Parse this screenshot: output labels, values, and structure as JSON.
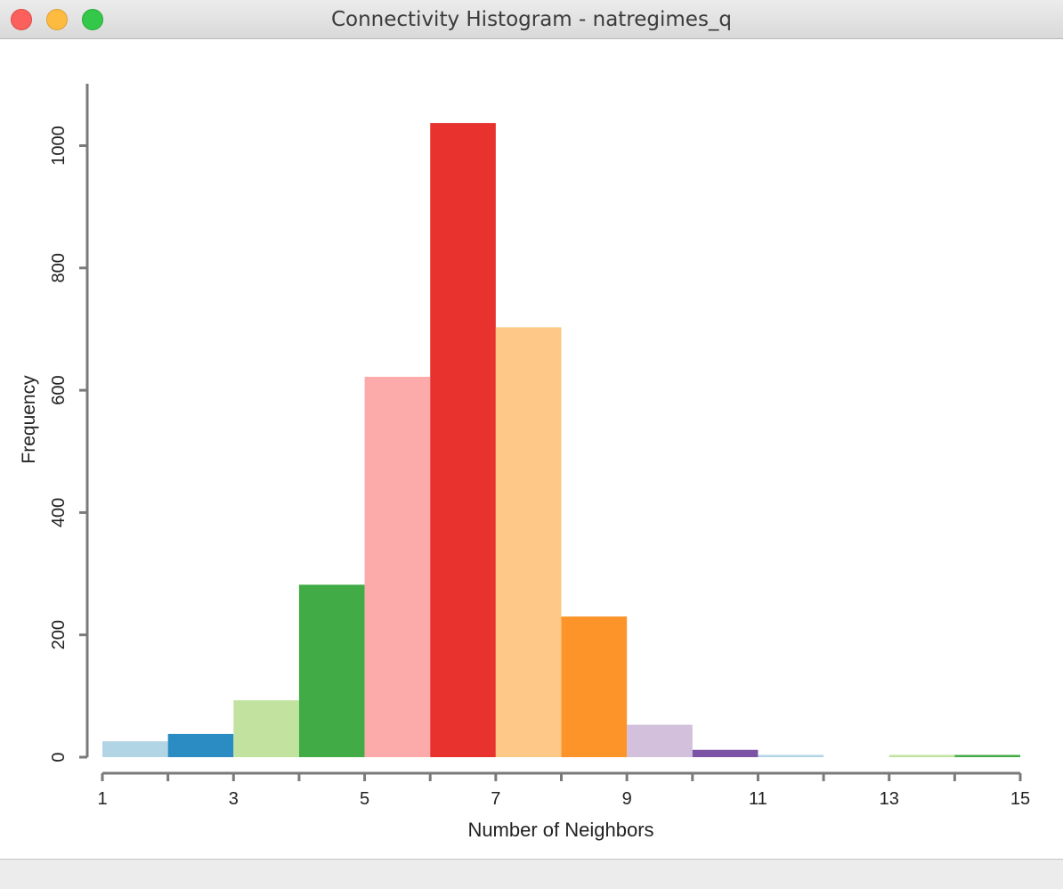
{
  "window": {
    "title": "Connectivity Histogram - natregimes_q"
  },
  "colors": {
    "titlebar": "#e3e3e3",
    "close": "#fc605c",
    "minimize": "#fdbc40",
    "maximize": "#34c84a",
    "axis": "#7a7a7a"
  },
  "chart_data": {
    "type": "bar",
    "title": "",
    "xlabel": "Number of Neighbors",
    "ylabel": "Frequency",
    "xlim": [
      1,
      15
    ],
    "ylim": [
      0,
      1100
    ],
    "x_ticks": [
      1,
      3,
      5,
      7,
      9,
      11,
      13,
      15
    ],
    "y_ticks": [
      0,
      200,
      400,
      600,
      800,
      1000
    ],
    "grid": false,
    "bins": [
      {
        "start": 1,
        "end": 2,
        "value": 26,
        "color": "#b2d5e6"
      },
      {
        "start": 2,
        "end": 3,
        "value": 38,
        "color": "#2b8cc4"
      },
      {
        "start": 3,
        "end": 4,
        "value": 93,
        "color": "#c2e3a0"
      },
      {
        "start": 4,
        "end": 5,
        "value": 282,
        "color": "#41ab45"
      },
      {
        "start": 5,
        "end": 6,
        "value": 622,
        "color": "#fcaaaa"
      },
      {
        "start": 6,
        "end": 7,
        "value": 1037,
        "color": "#e8322e"
      },
      {
        "start": 7,
        "end": 8,
        "value": 703,
        "color": "#fec888"
      },
      {
        "start": 8,
        "end": 9,
        "value": 230,
        "color": "#fd942a"
      },
      {
        "start": 9,
        "end": 10,
        "value": 53,
        "color": "#d3c0dc"
      },
      {
        "start": 10,
        "end": 11,
        "value": 12,
        "color": "#7b54a5"
      },
      {
        "start": 11,
        "end": 12,
        "value": 2,
        "color": "#b2d5e6"
      },
      {
        "start": 12,
        "end": 13,
        "value": 0,
        "color": "#2b8cc4"
      },
      {
        "start": 13,
        "end": 14,
        "value": 2,
        "color": "#c2e3a0"
      },
      {
        "start": 14,
        "end": 15,
        "value": 3,
        "color": "#41ab45"
      }
    ]
  }
}
